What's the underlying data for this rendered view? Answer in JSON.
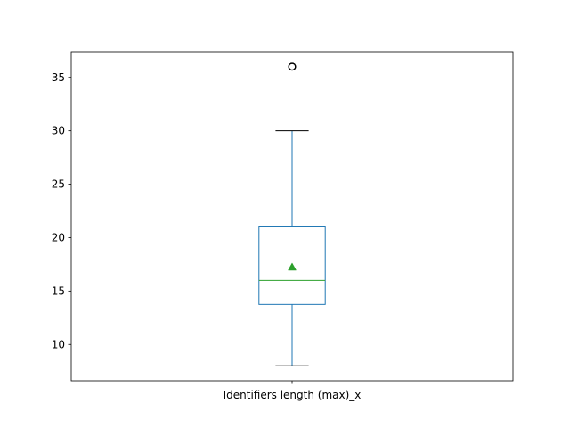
{
  "chart_data": {
    "type": "boxplot",
    "title": "",
    "xlabel": "",
    "ylabel": "",
    "categories": [
      "Identifiers length (max)_x"
    ],
    "ylim": [
      6.6,
      37.4
    ],
    "yticks": [
      10,
      15,
      20,
      25,
      30,
      35
    ],
    "ytick_labels": [
      "10",
      "15",
      "20",
      "25",
      "30",
      "35"
    ],
    "grid": false,
    "legend": "none",
    "boxes": [
      {
        "category": "Identifiers length (max)_x",
        "whisker_low": 8,
        "q1": 13.75,
        "median": 16,
        "mean": 17.25,
        "q3": 21,
        "whisker_high": 30,
        "outliers": [
          36,
          36,
          36
        ]
      }
    ],
    "colors": {
      "box": "#1f77b4",
      "median": "#2ca02c",
      "mean": "#2ca02c",
      "cap": "#000000",
      "outlier": "#000000"
    }
  }
}
